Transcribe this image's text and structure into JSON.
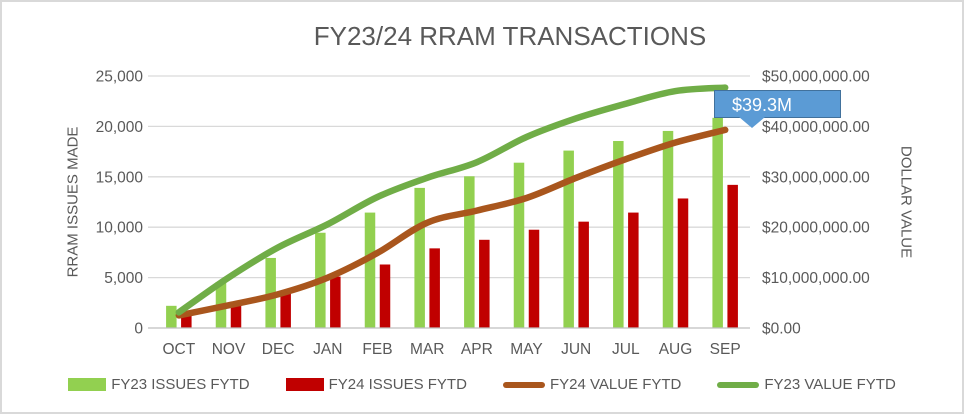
{
  "chart_data": {
    "type": "combo",
    "title": "FY23/24 RRAM TRANSACTIONS",
    "categories": [
      "OCT",
      "NOV",
      "DEC",
      "JAN",
      "FEB",
      "MAR",
      "APR",
      "MAY",
      "JUN",
      "JUL",
      "AUG",
      "SEP"
    ],
    "series": [
      {
        "name": "FY23 ISSUES FYTD",
        "type": "bar",
        "axis": "left",
        "color": "#92D050",
        "values": [
          2200,
          4550,
          6950,
          9450,
          11450,
          13900,
          15050,
          16400,
          17600,
          18550,
          19550,
          20850
        ]
      },
      {
        "name": "FY24 ISSUES FYTD",
        "type": "bar",
        "axis": "left",
        "color": "#C00000",
        "values": [
          1300,
          2500,
          3500,
          5100,
          6300,
          7900,
          8750,
          9750,
          10550,
          11450,
          12850,
          14200
        ]
      },
      {
        "name": "FY24 VALUE FYTD",
        "type": "line",
        "axis": "right",
        "color": "#A9561D",
        "values": [
          2500000,
          4500000,
          6700000,
          10000000,
          14900000,
          20900000,
          23300000,
          25800000,
          29800000,
          33500000,
          36800000,
          39300000
        ]
      },
      {
        "name": "FY23 VALUE FYTD",
        "type": "line",
        "axis": "right",
        "color": "#70AD47",
        "values": [
          3100000,
          10000000,
          16000000,
          20600000,
          26000000,
          29800000,
          32900000,
          37900000,
          41600000,
          44500000,
          47000000,
          47700000
        ]
      }
    ],
    "left_axis": {
      "title": "RRAM ISSUES MADE",
      "min": 0,
      "max": 25000,
      "tick_labels": [
        "0",
        "5,000",
        "10,000",
        "15,000",
        "20,000",
        "25,000"
      ]
    },
    "right_axis": {
      "title": "DOLLAR VALUE",
      "min": 0,
      "max": 50000000,
      "tick_labels": [
        "$0.00",
        "$10,000,000.00",
        "$20,000,000.00",
        "$30,000,000.00",
        "$40,000,000.00",
        "$50,000,000.00"
      ]
    },
    "annotation": {
      "text": "$39.3M",
      "points_to": {
        "series": "FY24 VALUE FYTD",
        "category": "SEP"
      },
      "fill": "#5B9BD5"
    },
    "legend": {
      "position": "bottom"
    },
    "grid": true,
    "text_color": "#595959",
    "gridline_color": "#D9D9D9",
    "axisline_color": "#BFBFBF"
  }
}
